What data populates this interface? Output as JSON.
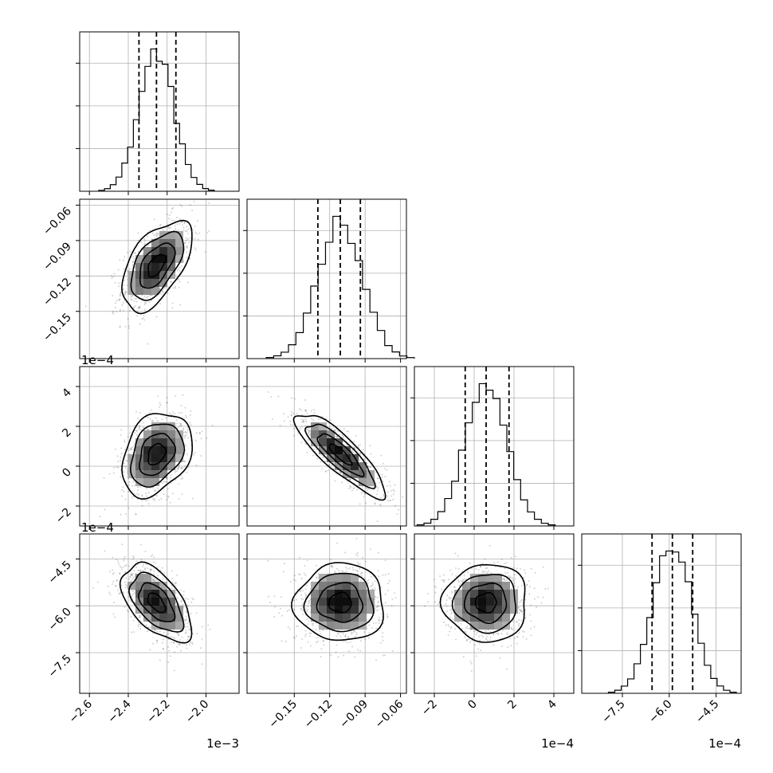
{
  "chart_data": {
    "type": "corner",
    "description_free": true,
    "parameters": [
      {
        "range": [
          -2.65,
          -1.83
        ],
        "ticks": [
          -2.6,
          -2.4,
          -2.2,
          -2.0
        ],
        "tick_labels": [
          "−2.6",
          "−2.4",
          "−2.2",
          "−2.0"
        ],
        "offset_label": "1e−3",
        "mean": -2.255,
        "sd": 0.09,
        "quantiles": [
          -2.345,
          -2.255,
          -2.155
        ]
      },
      {
        "range": [
          -0.19,
          -0.055
        ],
        "ticks": [
          -0.15,
          -0.12,
          -0.09,
          -0.06
        ],
        "tick_labels": [
          "−0.15",
          "−0.12",
          "−0.09",
          "−0.06"
        ],
        "offset_label": "",
        "mean": -0.111,
        "sd": 0.019,
        "quantiles": [
          -0.13,
          -0.111,
          -0.094
        ]
      },
      {
        "range": [
          -3.0,
          5.0
        ],
        "ticks": [
          -2,
          0,
          2,
          4
        ],
        "tick_labels": [
          "−2",
          "0",
          "2",
          "4"
        ],
        "offset_label": "1e−4",
        "mean": 0.6,
        "sd": 1.05,
        "quantiles": [
          -0.45,
          0.6,
          1.75
        ]
      },
      {
        "range": [
          -8.8,
          -3.7
        ],
        "ticks": [
          -7.5,
          -6.0,
          -4.5
        ],
        "tick_labels": [
          "−7.5",
          "−6.0",
          "−4.5"
        ],
        "offset_label": "1e−4",
        "mean": -5.9,
        "sd": 0.62,
        "quantiles": [
          -6.55,
          -5.9,
          -5.25
        ]
      }
    ],
    "correlations": {
      "1-0": 0.55,
      "2-0": 0.3,
      "2-1": -0.85,
      "3-0": -0.55,
      "3-1": 0.0,
      "3-2": 0.0
    },
    "row_offset_labels": {
      "2": "1e−4",
      "3": "1e−4"
    },
    "bins": 20,
    "contour_levels_sigma": [
      0.5,
      1.0,
      1.5,
      2.0
    ],
    "quantile_lines": "dashed",
    "grid": true
  }
}
